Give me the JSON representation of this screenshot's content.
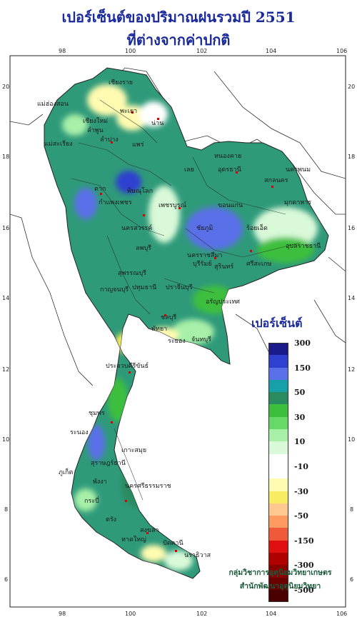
{
  "title": {
    "line1": "เปอร์เซ็นต์ของปริมาณฝนรวมปี  2551",
    "line2": "ที่ต่างจากค่าปกติ"
  },
  "axes": {
    "top_lon": [
      "98",
      "100",
      "102",
      "104",
      "106"
    ],
    "bottom_lon": [
      "98",
      "100",
      "102",
      "104",
      "106"
    ],
    "left_lat": [
      "20",
      "18",
      "16",
      "14",
      "12",
      "10",
      "8",
      "6"
    ],
    "right_lat": [
      "20",
      "18",
      "16",
      "14",
      "12",
      "10",
      "8",
      "6"
    ]
  },
  "legend": {
    "title": "เปอร์เซ็นต์",
    "items": [
      {
        "label": "300",
        "color": "#1a1a8a"
      },
      {
        "label": "",
        "color": "#2f3fd0"
      },
      {
        "label": "150",
        "color": "#5a70e8"
      },
      {
        "label": "",
        "color": "#17a0a8"
      },
      {
        "label": "50",
        "color": "#2a8a60"
      },
      {
        "label": "",
        "color": "#3cbf3c"
      },
      {
        "label": "30",
        "color": "#66d966"
      },
      {
        "label": "",
        "color": "#a8f0a8"
      },
      {
        "label": "10",
        "color": "#d9f9d9"
      },
      {
        "label": "",
        "color": "#ffffff"
      },
      {
        "label": "-10",
        "color": "#ffffff"
      },
      {
        "label": "",
        "color": "#fffbb0"
      },
      {
        "label": "-30",
        "color": "#f8ec60"
      },
      {
        "label": "",
        "color": "#ffc890"
      },
      {
        "label": "-50",
        "color": "#ff9a60"
      },
      {
        "label": "",
        "color": "#f05a3a"
      },
      {
        "label": "-150",
        "color": "#e01010"
      },
      {
        "label": "",
        "color": "#b00000"
      },
      {
        "label": "-300",
        "color": "#8a0000"
      },
      {
        "label": "",
        "color": "#6a0000"
      },
      {
        "label": "-500",
        "color": "#4a0000"
      }
    ]
  },
  "provinces": [
    {
      "name": "เชียงราย"
    },
    {
      "name": "แม่ฮ่องสอน"
    },
    {
      "name": "เชียงใหม่"
    },
    {
      "name": "พะเยา"
    },
    {
      "name": "ลำพูน"
    },
    {
      "name": "น่าน"
    },
    {
      "name": "ลำปาง"
    },
    {
      "name": "แพร่"
    },
    {
      "name": "แม่สะเรียง"
    },
    {
      "name": "หนองคาย"
    },
    {
      "name": "อุดรธานี"
    },
    {
      "name": "นครพนม"
    },
    {
      "name": "สกลนคร"
    },
    {
      "name": "เลย"
    },
    {
      "name": "ตาก"
    },
    {
      "name": "พิษณุโลก"
    },
    {
      "name": "มุกดาหาร"
    },
    {
      "name": "กำแพงเพชร"
    },
    {
      "name": "เพชรบูรณ์"
    },
    {
      "name": "ขอนแก่น"
    },
    {
      "name": "ชัยภูมิ"
    },
    {
      "name": "นครสวรรค์"
    },
    {
      "name": "ร้อยเอ็ด"
    },
    {
      "name": "อุบลราชธานี"
    },
    {
      "name": "ลพบุรี"
    },
    {
      "name": "นครราชสีมา"
    },
    {
      "name": "สุรินทร์"
    },
    {
      "name": "ศรีสะเกษ"
    },
    {
      "name": "สุพรรณบุรี"
    },
    {
      "name": "บุรีรัมย์"
    },
    {
      "name": "กาญจนบุรี"
    },
    {
      "name": "ปทุมธานี"
    },
    {
      "name": "ปราจีนบุรี"
    },
    {
      "name": "อรัญประเทศ"
    },
    {
      "name": "ชลบุรี"
    },
    {
      "name": "พัทยา"
    },
    {
      "name": "ระยอง"
    },
    {
      "name": "จันทบุรี"
    },
    {
      "name": "ประจวบคีรีขันธ์"
    },
    {
      "name": "ชุมพร"
    },
    {
      "name": "ระนอง"
    },
    {
      "name": "เกาะสมุย"
    },
    {
      "name": "สุราษฎร์ธานี"
    },
    {
      "name": "ภูเก็ต"
    },
    {
      "name": "พังงา"
    },
    {
      "name": "นครศรีธรรมราช"
    },
    {
      "name": "กระบี่"
    },
    {
      "name": "ตรัง"
    },
    {
      "name": "สงขลา"
    },
    {
      "name": "หาดใหญ่"
    },
    {
      "name": "ปัตตานี"
    },
    {
      "name": "นราธิวาส"
    }
  ],
  "legend_title": "เปอร์เซ็นต์",
  "credits": {
    "line1": "กลุ่มวิชาการอุตุนิยมวิทยาเกษตร",
    "line2": "สำนักพัฒนาอุตุนิยมวิทยา"
  }
}
